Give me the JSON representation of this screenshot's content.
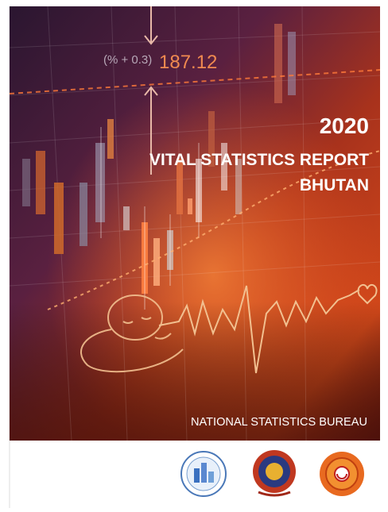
{
  "cover": {
    "annotation_change": "(% + 0.3)",
    "annotation_value": "187.12",
    "year": "2020",
    "title": "VITAL STATISTICS REPORT",
    "subtitle": "BHUTAN",
    "publisher": "NATIONAL STATISTICS BUREAU"
  }
}
